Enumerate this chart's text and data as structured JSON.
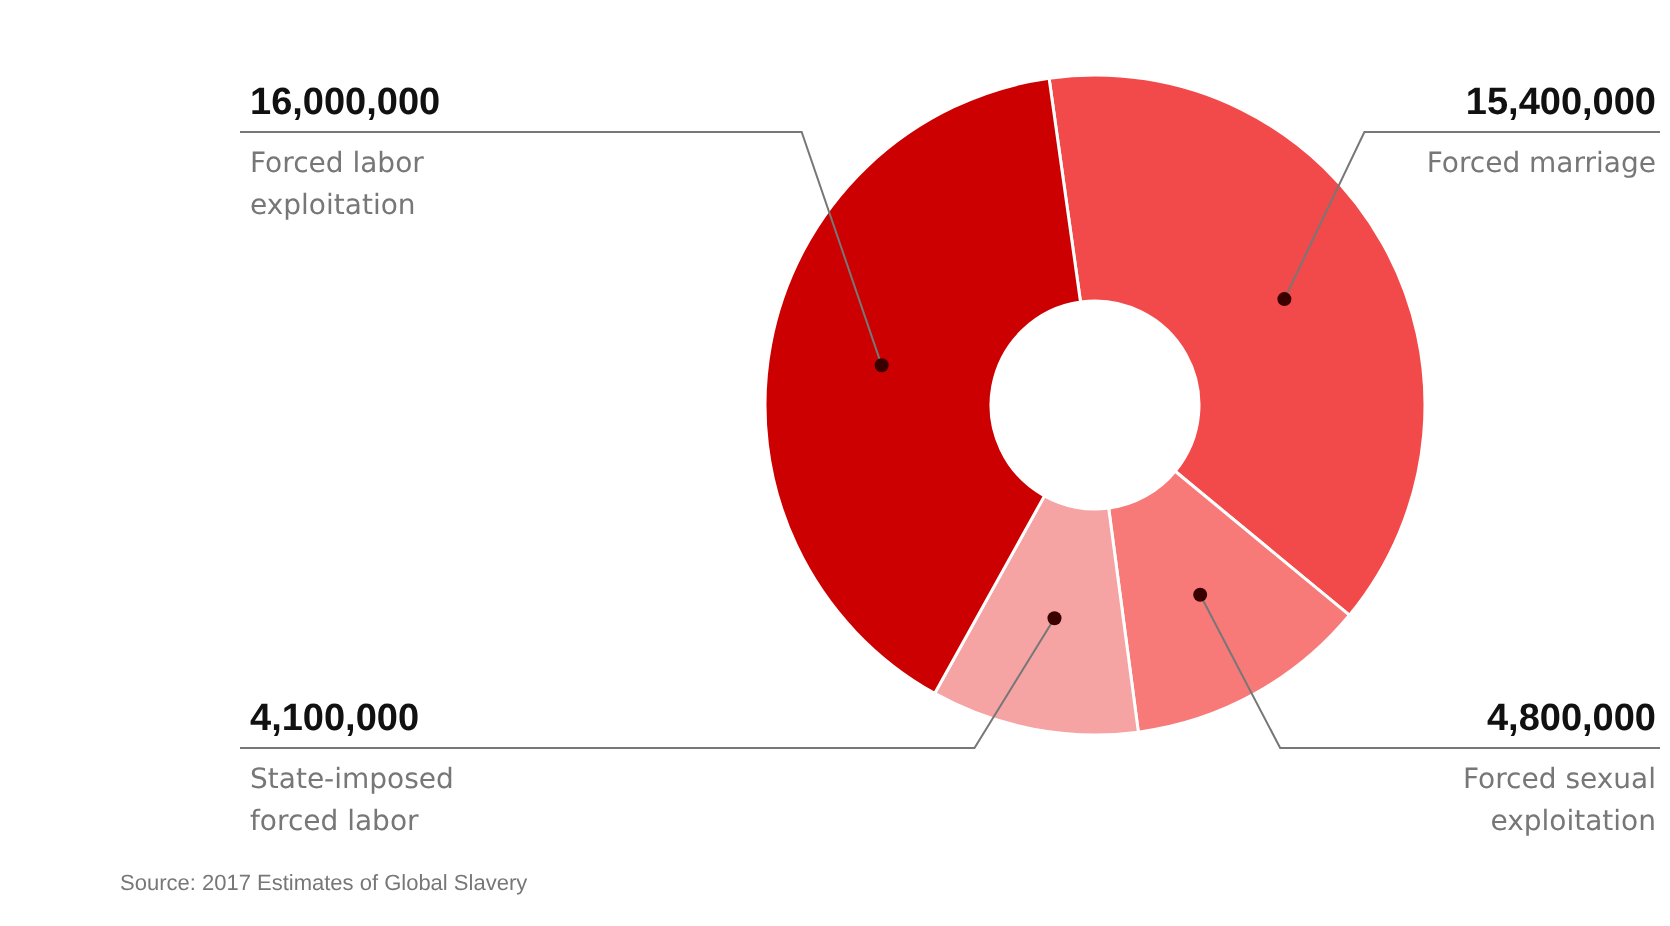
{
  "chart_data": {
    "type": "donut",
    "categories": [
      "Forced marriage",
      "Forced sexual exploitation",
      "State-imposed forced labor",
      "Forced labor exploitation"
    ],
    "values": [
      15400000,
      4800000,
      4100000,
      16000000
    ],
    "value_labels": [
      "15,400,000",
      "4,800,000",
      "4,100,000",
      "16,000,000"
    ],
    "colors": [
      "#f24a4a",
      "#f77a78",
      "#f5a3a3",
      "#cc0000"
    ],
    "legend": false,
    "annotations": [
      "Source: 2017 Estimates of Global Slavery"
    ]
  }
}
